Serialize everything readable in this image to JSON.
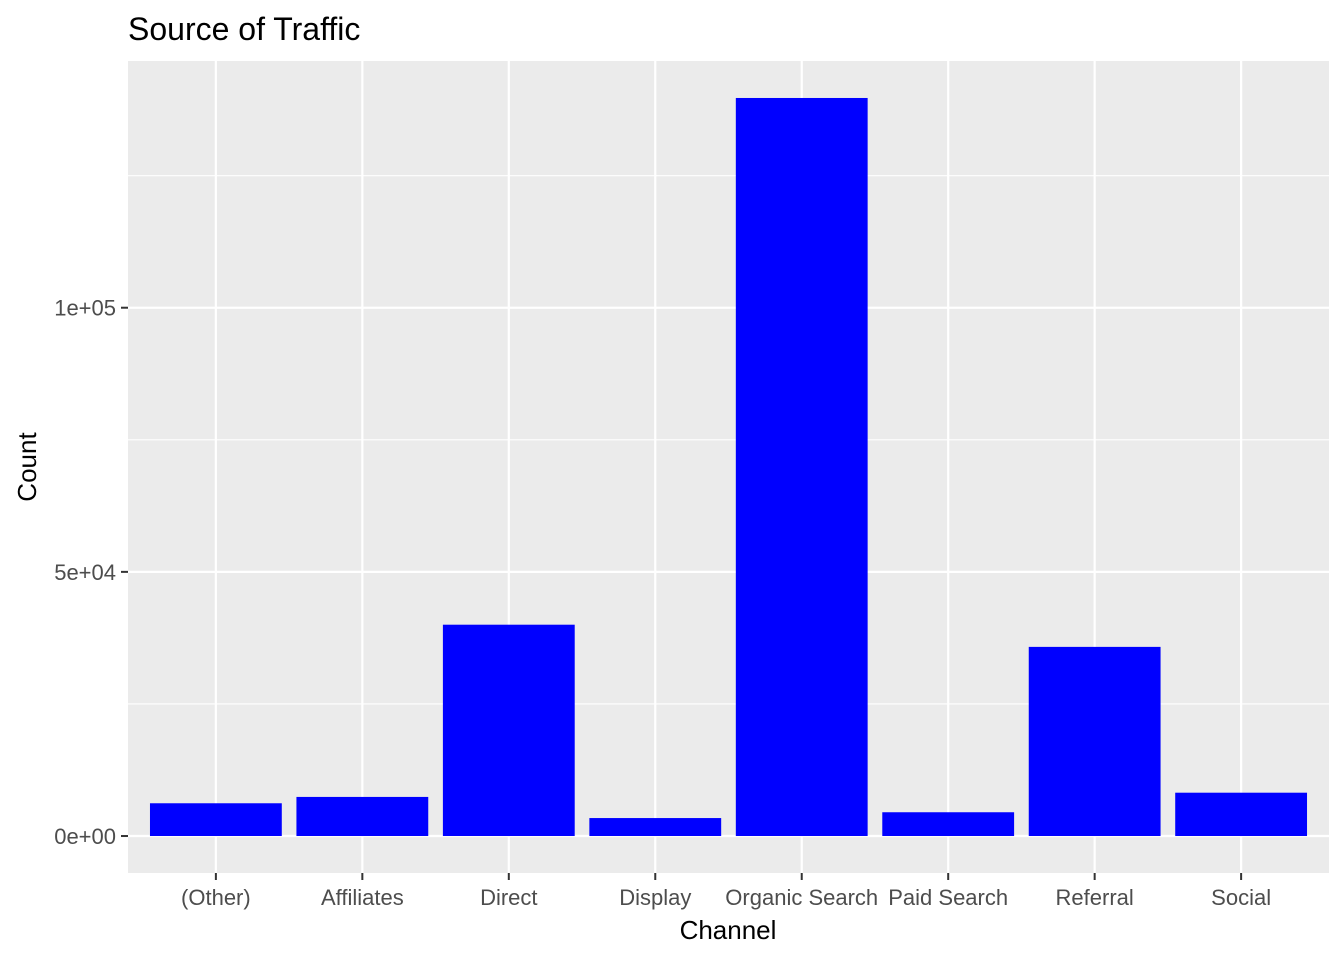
{
  "chart_data": {
    "type": "bar",
    "title": "Source of Traffic",
    "xlabel": "Channel",
    "ylabel": "Count",
    "categories": [
      "(Other)",
      "Affiliates",
      "Direct",
      "Display",
      "Organic Search",
      "Paid Search",
      "Referral",
      "Social"
    ],
    "values": [
      6200,
      7400,
      40000,
      3400,
      139700,
      4500,
      35800,
      8200
    ],
    "y_ticks": [
      0,
      50000,
      100000
    ],
    "y_tick_labels": [
      "0e+00",
      "5e+04",
      "1e+05"
    ],
    "ylim": [
      -7000,
      146700
    ],
    "grid": true,
    "legend": "none",
    "colors": {
      "bar": "#0000ff",
      "panel_background": "#ebebeb",
      "grid": "#ffffff",
      "tick": "#333333"
    }
  }
}
